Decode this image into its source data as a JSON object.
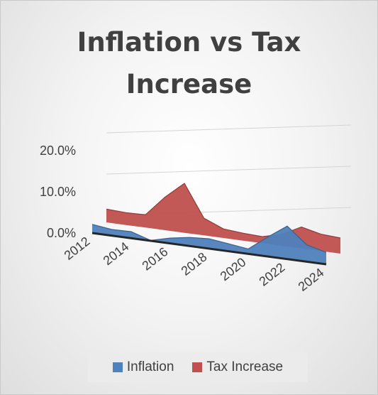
{
  "chart_data": {
    "type": "area",
    "title": "Inflation vs Tax Increase",
    "categories": [
      "2012",
      "2013",
      "2014",
      "2015",
      "2016",
      "2017",
      "2018",
      "2019",
      "2020",
      "2021",
      "2022",
      "2023",
      "2024"
    ],
    "x_tick_labels": [
      "2012",
      "2014",
      "2016",
      "2018",
      "2020",
      "2022",
      "2024"
    ],
    "y_tick_labels": [
      "0.0%",
      "10.0%",
      "20.0%"
    ],
    "ylim": [
      0,
      20
    ],
    "grid": true,
    "legend_position": "bottom",
    "series": [
      {
        "name": "Inflation",
        "color": "#4f81bd",
        "values": [
          2.1,
          1.5,
          1.6,
          0.1,
          1.3,
          2.1,
          2.4,
          1.8,
          1.2,
          4.7,
          8.0,
          4.1,
          2.9
        ]
      },
      {
        "name": "Tax Increase",
        "color": "#c0504d",
        "values": [
          3.2,
          3.0,
          3.1,
          8.0,
          12.0,
          4.2,
          2.2,
          1.8,
          1.6,
          2.8,
          5.2,
          4.1,
          3.8
        ]
      }
    ]
  }
}
